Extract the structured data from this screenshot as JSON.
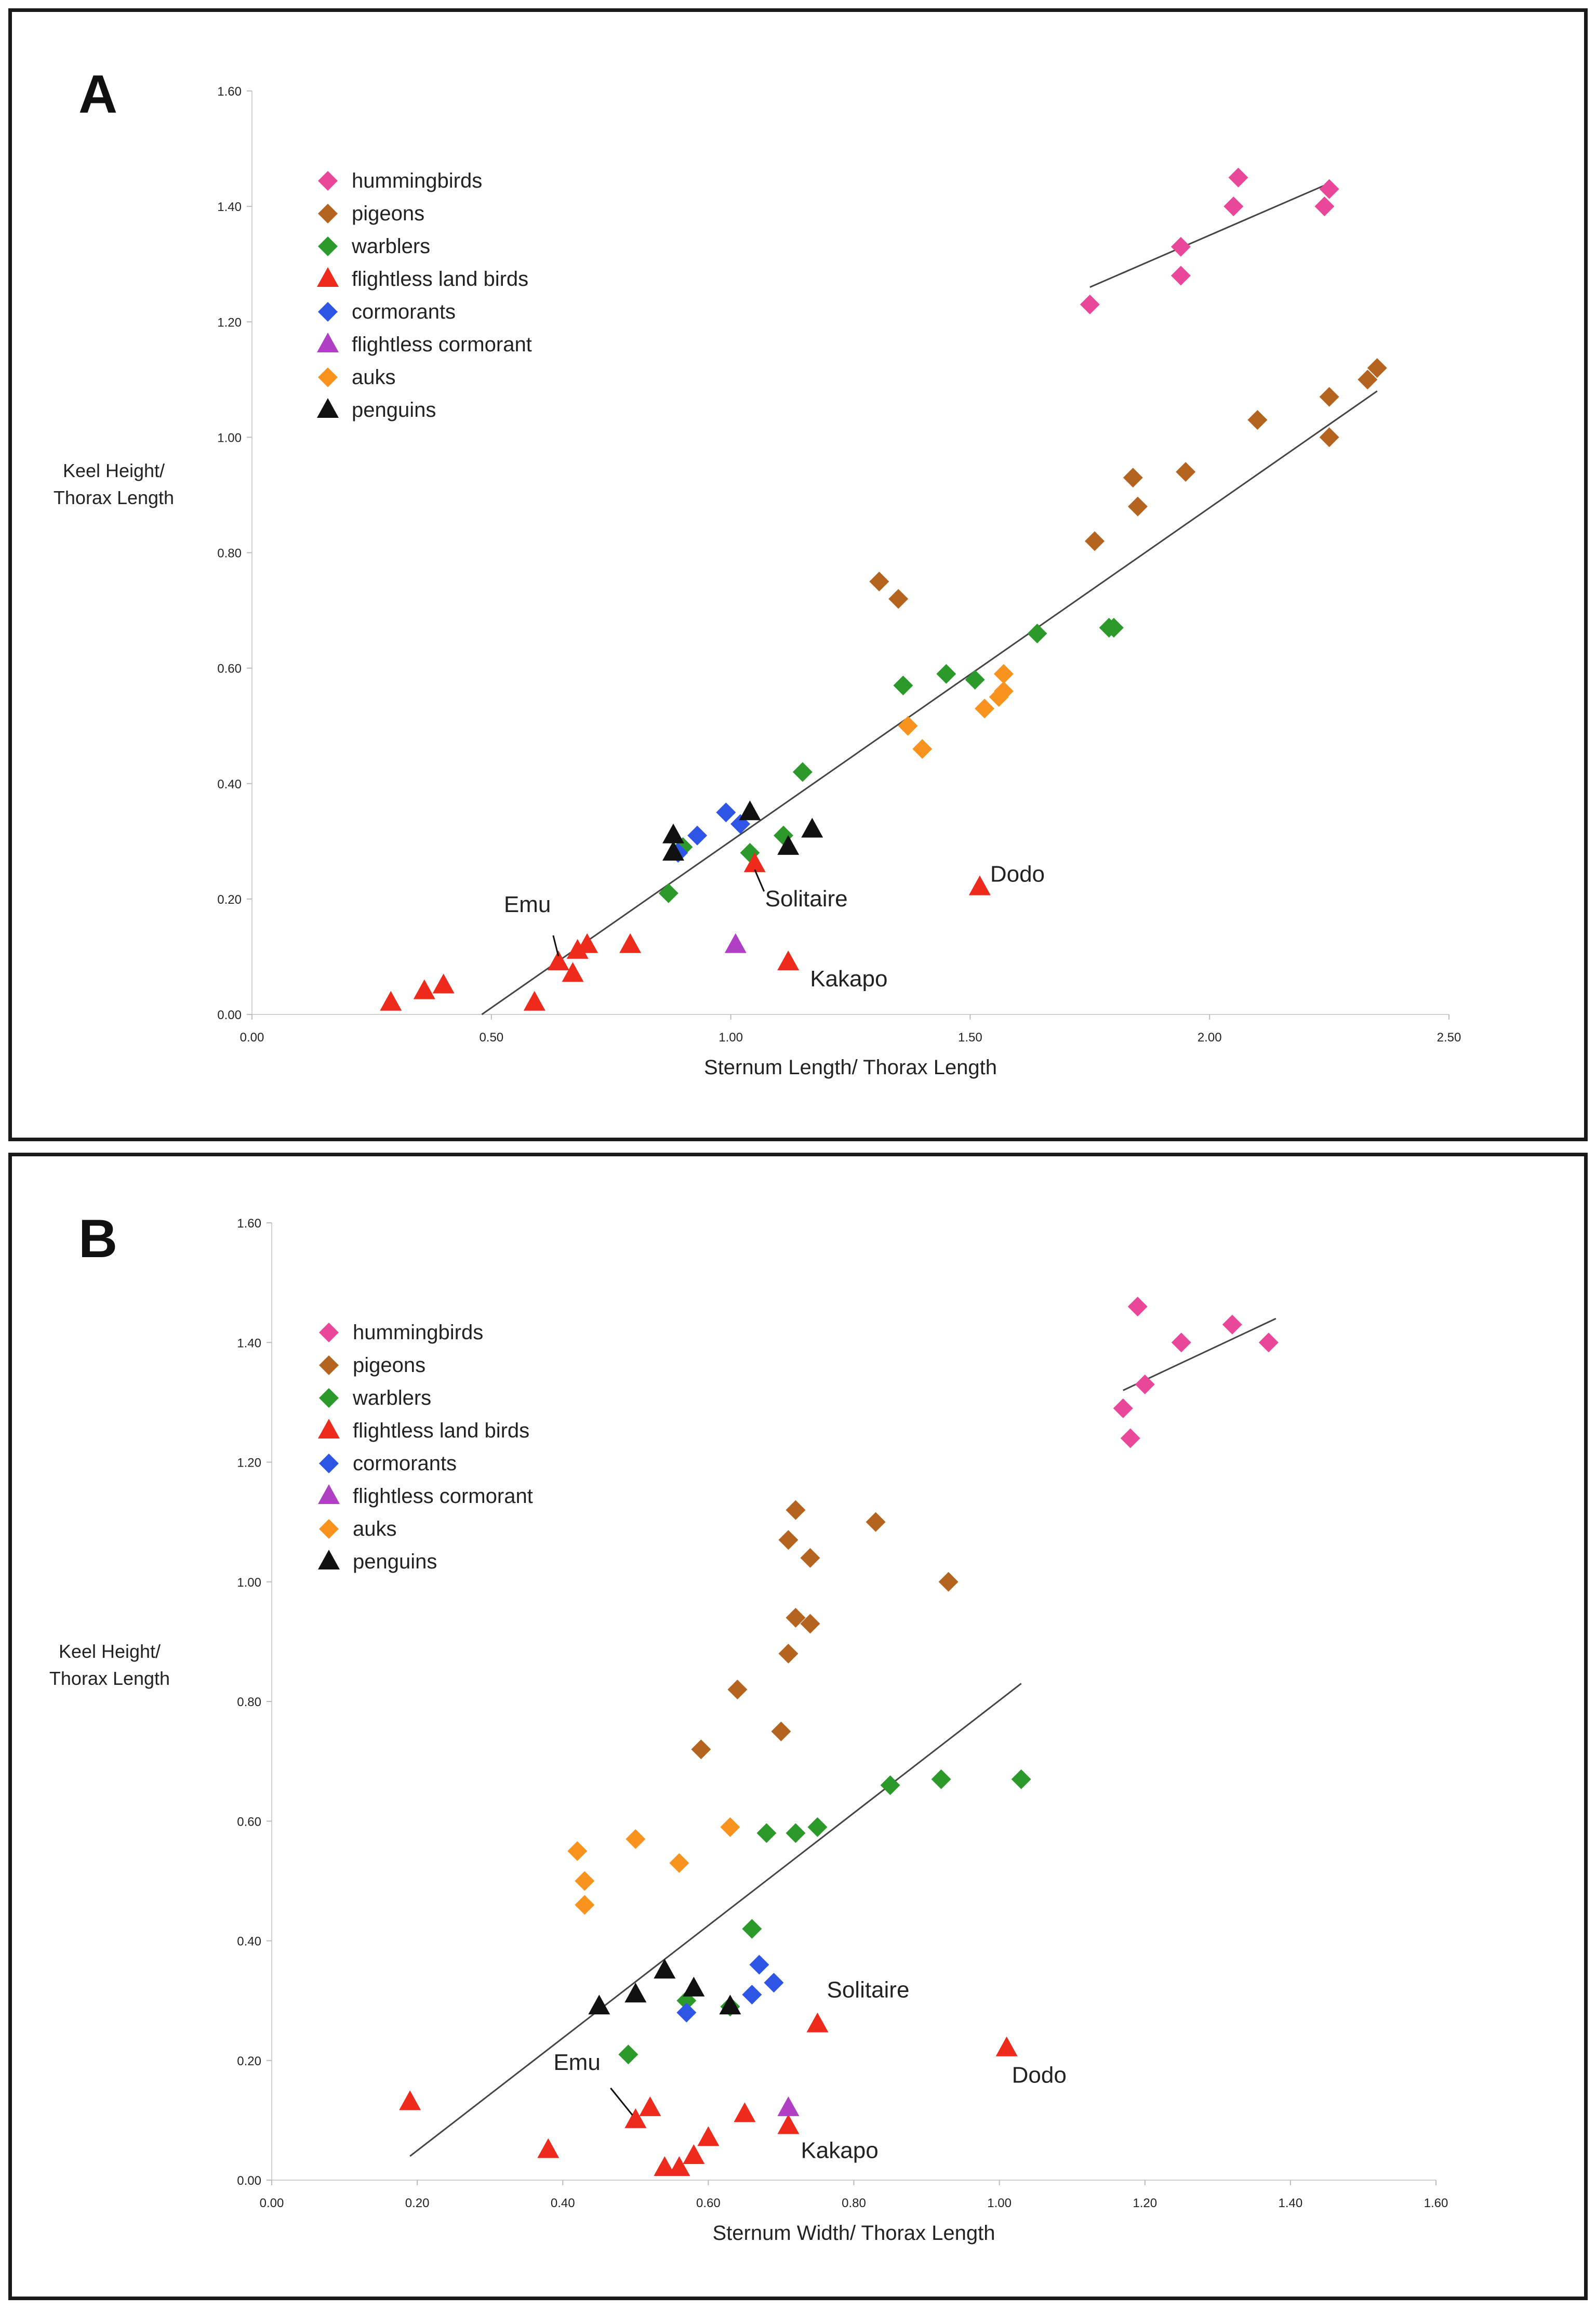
{
  "chart_data": [
    {
      "panel_label": "A",
      "type": "scatter",
      "xlabel": "Sternum Length/ Thorax Length",
      "ylabel": [
        "Keel Height/",
        "Thorax Length"
      ],
      "xlim": [
        0,
        2.5
      ],
      "ylim": [
        0,
        1.6
      ],
      "x_ticks": [
        0,
        0.5,
        1.0,
        1.5,
        2.0,
        2.5
      ],
      "x_tick_labels": [
        "0.00",
        "0.50",
        "1.00",
        "1.50",
        "2.00",
        "2.50"
      ],
      "y_ticks": [
        0,
        0.2,
        0.4,
        0.6,
        0.8,
        1.0,
        1.2,
        1.4,
        1.6
      ],
      "y_tick_labels": [
        "0.00",
        "0.20",
        "0.40",
        "0.60",
        "0.80",
        "1.00",
        "1.20",
        "1.40",
        "1.60"
      ],
      "grid": false,
      "legend_position": "top-left",
      "series": [
        {
          "name": "hummingbirds",
          "marker": "diamond",
          "color": "#e8479a",
          "points": [
            [
              1.75,
              1.23
            ],
            [
              1.94,
              1.33
            ],
            [
              1.94,
              1.28
            ],
            [
              2.05,
              1.4
            ],
            [
              2.06,
              1.45
            ],
            [
              2.24,
              1.4
            ],
            [
              2.25,
              1.43
            ]
          ]
        },
        {
          "name": "pigeons",
          "marker": "diamond",
          "color": "#b4641e",
          "points": [
            [
              1.31,
              0.75
            ],
            [
              1.35,
              0.72
            ],
            [
              1.76,
              0.82
            ],
            [
              1.84,
              0.93
            ],
            [
              1.85,
              0.88
            ],
            [
              1.95,
              0.94
            ],
            [
              2.1,
              1.03
            ],
            [
              2.25,
              1.07
            ],
            [
              2.25,
              1.0
            ],
            [
              2.33,
              1.1
            ],
            [
              2.35,
              1.12
            ]
          ]
        },
        {
          "name": "warblers",
          "marker": "diamond",
          "color": "#2b9a2b",
          "points": [
            [
              0.87,
              0.21
            ],
            [
              0.9,
              0.29
            ],
            [
              1.04,
              0.28
            ],
            [
              1.11,
              0.31
            ],
            [
              1.15,
              0.42
            ],
            [
              1.36,
              0.57
            ],
            [
              1.45,
              0.59
            ],
            [
              1.51,
              0.58
            ],
            [
              1.64,
              0.66
            ],
            [
              1.79,
              0.67
            ],
            [
              1.8,
              0.67
            ]
          ]
        },
        {
          "name": "flightless land birds",
          "marker": "triangle",
          "color": "#ee2a1c",
          "points": [
            [
              0.29,
              0.02
            ],
            [
              0.36,
              0.04
            ],
            [
              0.4,
              0.05
            ],
            [
              0.59,
              0.02
            ],
            [
              0.64,
              0.09
            ],
            [
              0.67,
              0.07
            ],
            [
              0.68,
              0.11
            ],
            [
              0.7,
              0.12
            ],
            [
              0.79,
              0.12
            ],
            [
              1.05,
              0.26
            ],
            [
              1.12,
              0.09
            ],
            [
              1.52,
              0.22
            ]
          ]
        },
        {
          "name": "cormorants",
          "marker": "diamond",
          "color": "#2f55e6",
          "points": [
            [
              0.89,
              0.28
            ],
            [
              0.93,
              0.31
            ],
            [
              0.99,
              0.35
            ],
            [
              1.02,
              0.33
            ]
          ]
        },
        {
          "name": "flightless cormorant",
          "marker": "triangle",
          "color": "#b03fc4",
          "points": [
            [
              1.01,
              0.12
            ]
          ]
        },
        {
          "name": "auks",
          "marker": "diamond",
          "color": "#f7931e",
          "points": [
            [
              1.37,
              0.5
            ],
            [
              1.4,
              0.46
            ],
            [
              1.53,
              0.53
            ],
            [
              1.56,
              0.55
            ],
            [
              1.57,
              0.56
            ],
            [
              1.57,
              0.59
            ]
          ]
        },
        {
          "name": "penguins",
          "marker": "triangle",
          "color": "#111111",
          "points": [
            [
              0.88,
              0.31
            ],
            [
              0.88,
              0.28
            ],
            [
              1.04,
              0.35
            ],
            [
              1.12,
              0.29
            ],
            [
              1.17,
              0.32
            ]
          ]
        }
      ],
      "trend_lines": [
        {
          "from": [
            0.48,
            0.0
          ],
          "to": [
            2.35,
            1.08
          ]
        },
        {
          "from": [
            1.75,
            1.26
          ],
          "to": [
            2.25,
            1.44
          ]
        }
      ],
      "annotations": [
        {
          "text": "Emu",
          "x": 0.64,
          "y": 0.09
        },
        {
          "text": "Solitaire",
          "x": 1.05,
          "y": 0.26
        },
        {
          "text": "Dodo",
          "x": 1.52,
          "y": 0.22
        },
        {
          "text": "Kakapo",
          "x": 1.12,
          "y": 0.09
        }
      ]
    },
    {
      "panel_label": "B",
      "type": "scatter",
      "xlabel": "Sternum Width/ Thorax Length",
      "ylabel": [
        "Keel Height/",
        "Thorax Length"
      ],
      "xlim": [
        0,
        1.6
      ],
      "ylim": [
        0,
        1.6
      ],
      "x_ticks": [
        0,
        0.2,
        0.4,
        0.6,
        0.8,
        1.0,
        1.2,
        1.4,
        1.6
      ],
      "x_tick_labels": [
        "0.00",
        "0.20",
        "0.40",
        "0.60",
        "0.80",
        "1.00",
        "1.20",
        "1.40",
        "1.60"
      ],
      "y_ticks": [
        0,
        0.2,
        0.4,
        0.6,
        0.8,
        1.0,
        1.2,
        1.4,
        1.6
      ],
      "y_tick_labels": [
        "0.00",
        "0.20",
        "0.40",
        "0.60",
        "0.80",
        "1.00",
        "1.20",
        "1.40",
        "1.60"
      ],
      "grid": false,
      "legend_position": "top-left",
      "series": [
        {
          "name": "hummingbirds",
          "marker": "diamond",
          "color": "#e8479a",
          "points": [
            [
              1.17,
              1.29
            ],
            [
              1.18,
              1.24
            ],
            [
              1.19,
              1.46
            ],
            [
              1.2,
              1.33
            ],
            [
              1.25,
              1.4
            ],
            [
              1.32,
              1.43
            ],
            [
              1.37,
              1.4
            ]
          ]
        },
        {
          "name": "pigeons",
          "marker": "diamond",
          "color": "#b4641e",
          "points": [
            [
              0.59,
              0.72
            ],
            [
              0.64,
              0.82
            ],
            [
              0.7,
              0.75
            ],
            [
              0.71,
              1.07
            ],
            [
              0.71,
              0.88
            ],
            [
              0.72,
              0.94
            ],
            [
              0.72,
              1.12
            ],
            [
              0.74,
              1.04
            ],
            [
              0.74,
              0.93
            ],
            [
              0.83,
              1.1
            ],
            [
              0.93,
              1.0
            ]
          ]
        },
        {
          "name": "warblers",
          "marker": "diamond",
          "color": "#2b9a2b",
          "points": [
            [
              0.49,
              0.21
            ],
            [
              0.57,
              0.3
            ],
            [
              0.63,
              0.29
            ],
            [
              0.66,
              0.42
            ],
            [
              0.68,
              0.58
            ],
            [
              0.72,
              0.58
            ],
            [
              0.75,
              0.59
            ],
            [
              0.85,
              0.66
            ],
            [
              0.92,
              0.67
            ],
            [
              1.03,
              0.67
            ]
          ]
        },
        {
          "name": "flightless land birds",
          "marker": "triangle",
          "color": "#ee2a1c",
          "points": [
            [
              0.19,
              0.13
            ],
            [
              0.38,
              0.05
            ],
            [
              0.5,
              0.1
            ],
            [
              0.52,
              0.12
            ],
            [
              0.54,
              0.02
            ],
            [
              0.56,
              0.02
            ],
            [
              0.58,
              0.04
            ],
            [
              0.6,
              0.07
            ],
            [
              0.65,
              0.11
            ],
            [
              0.71,
              0.09
            ],
            [
              0.75,
              0.26
            ],
            [
              1.01,
              0.22
            ]
          ]
        },
        {
          "name": "cormorants",
          "marker": "diamond",
          "color": "#2f55e6",
          "points": [
            [
              0.57,
              0.28
            ],
            [
              0.66,
              0.31
            ],
            [
              0.67,
              0.36
            ],
            [
              0.69,
              0.33
            ]
          ]
        },
        {
          "name": "flightless cormorant",
          "marker": "triangle",
          "color": "#b03fc4",
          "points": [
            [
              0.71,
              0.12
            ]
          ]
        },
        {
          "name": "auks",
          "marker": "diamond",
          "color": "#f7931e",
          "points": [
            [
              0.42,
              0.55
            ],
            [
              0.43,
              0.5
            ],
            [
              0.43,
              0.46
            ],
            [
              0.5,
              0.57
            ],
            [
              0.56,
              0.53
            ],
            [
              0.63,
              0.59
            ]
          ]
        },
        {
          "name": "penguins",
          "marker": "triangle",
          "color": "#111111",
          "points": [
            [
              0.45,
              0.29
            ],
            [
              0.5,
              0.31
            ],
            [
              0.54,
              0.35
            ],
            [
              0.58,
              0.32
            ],
            [
              0.63,
              0.29
            ]
          ]
        }
      ],
      "trend_lines": [
        {
          "from": [
            0.19,
            0.04
          ],
          "to": [
            1.03,
            0.83
          ]
        },
        {
          "from": [
            1.17,
            1.32
          ],
          "to": [
            1.38,
            1.44
          ]
        }
      ],
      "annotations": [
        {
          "text": "Emu",
          "x": 0.5,
          "y": 0.1
        },
        {
          "text": "Solitaire",
          "x": 0.75,
          "y": 0.26
        },
        {
          "text": "Dodo",
          "x": 1.01,
          "y": 0.22
        },
        {
          "text": "Kakapo",
          "x": 0.71,
          "y": 0.09
        }
      ]
    }
  ]
}
